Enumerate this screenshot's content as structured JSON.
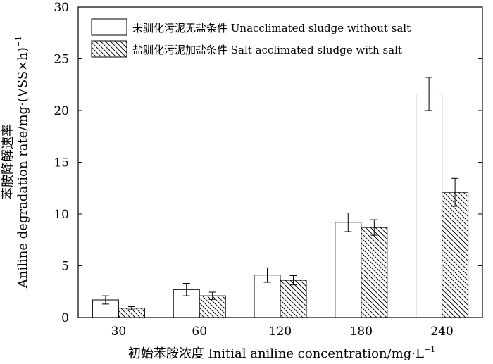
{
  "chart_data": {
    "type": "bar",
    "categories": [
      "30",
      "60",
      "120",
      "180",
      "240"
    ],
    "series": [
      {
        "name": "未驯化污泥无盐条件 Unacclimated sludge without salt",
        "values": [
          1.7,
          2.7,
          4.1,
          9.2,
          21.6
        ],
        "errors": [
          0.4,
          0.6,
          0.7,
          0.9,
          1.6
        ],
        "fill": "#ffffff"
      },
      {
        "name": "盐驯化污泥加盐条件 Salt acclimated sludge with salt",
        "values": [
          0.9,
          2.1,
          3.6,
          8.7,
          12.1
        ],
        "errors": [
          0.15,
          0.35,
          0.45,
          0.75,
          1.35
        ],
        "fill": "hatch"
      }
    ],
    "yticks": [
      "0",
      "5",
      "10",
      "15",
      "20",
      "25",
      "30"
    ],
    "ylim": [
      0,
      30
    ],
    "xlabel": "初始苯胺浓度 Initial aniline concentration/mg·L",
    "xlabel_sup": "−1",
    "ylabel_line1": "苯胺降解速率",
    "ylabel_line2": "Aniline degradation rate/mg·(VSS×h)",
    "ylabel_sup": "−1",
    "legend_position": "top-left",
    "grid": false
  }
}
